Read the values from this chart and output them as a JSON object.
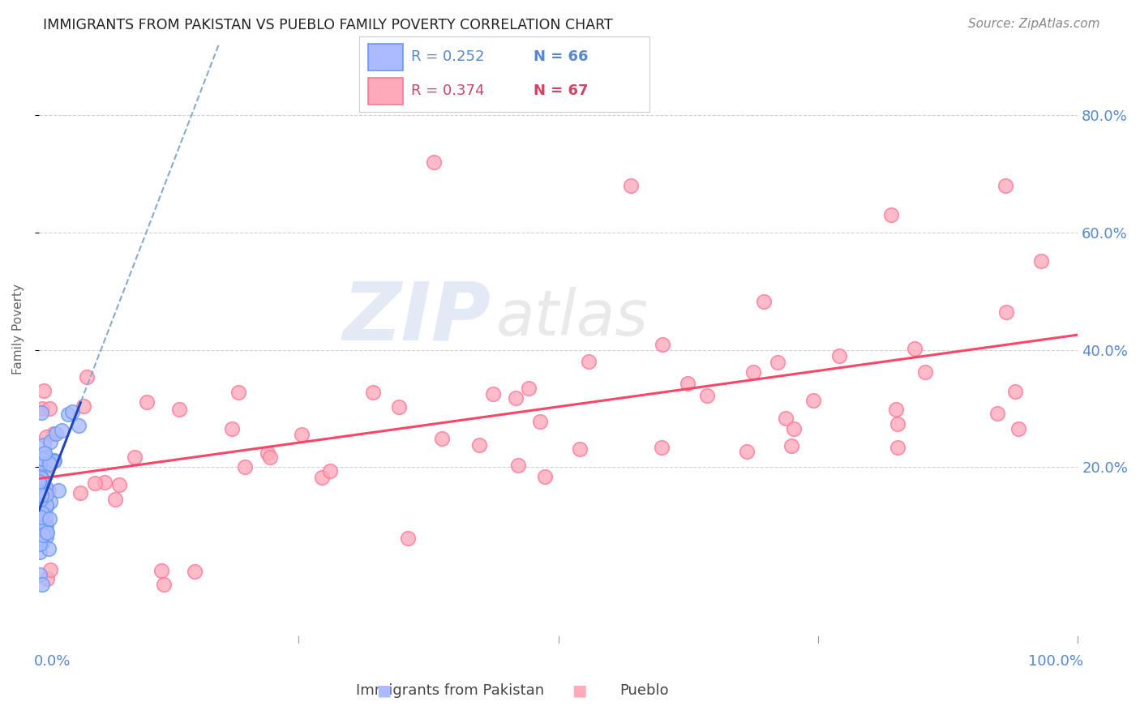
{
  "title": "IMMIGRANTS FROM PAKISTAN VS PUEBLO FAMILY POVERTY CORRELATION CHART",
  "source": "Source: ZipAtlas.com",
  "ylabel": "Family Poverty",
  "watermark_zip": "ZIP",
  "watermark_atlas": "atlas",
  "legend_name_blue": "Immigrants from Pakistan",
  "legend_name_pink": "Pueblo",
  "ytick_labels": [
    "80.0%",
    "60.0%",
    "40.0%",
    "20.0%"
  ],
  "ytick_values": [
    0.8,
    0.6,
    0.4,
    0.2
  ],
  "xlim": [
    0.0,
    1.0
  ],
  "ylim": [
    -0.05,
    0.92
  ],
  "blue_color": "#6699ee",
  "blue_face_color": "#aabbff",
  "pink_color": "#ff7799",
  "pink_face_color": "#ffaabb",
  "blue_line_color": "#2244bb",
  "pink_line_color": "#ff4466",
  "dash_line_color": "#88aacc",
  "background_color": "#ffffff",
  "grid_color": "#cccccc",
  "blue_R": 0.252,
  "blue_N": 66,
  "pink_R": 0.374,
  "pink_N": 67
}
